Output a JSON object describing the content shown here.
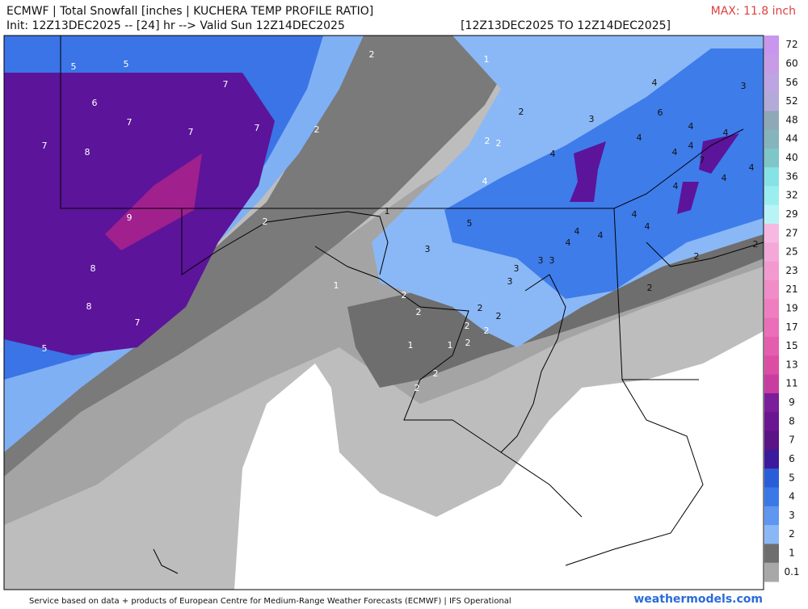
{
  "header": {
    "title": "ECMWF | Total Snowfall [inches | KUCHERA TEMP PROFILE RATIO]",
    "init": "Init: 12Z13DEC2025 -- [24] hr --> Valid Sun 12Z14DEC2025",
    "range": "[12Z13DEC2025 TO 12Z14DEC2025]",
    "max": "MAX: 11.8 inch"
  },
  "colorbar": {
    "ticks": [
      72,
      60,
      56,
      52,
      48,
      44,
      40,
      36,
      32,
      29,
      27,
      25,
      23,
      21,
      19,
      17,
      15,
      13,
      11,
      9,
      8,
      7,
      6,
      5,
      4,
      3,
      2,
      1,
      0.1
    ],
    "colors": [
      "#c896ec",
      "#c69ce6",
      "#bda4e2",
      "#b4aad8",
      "#8fa8b8",
      "#86b4bc",
      "#7ec6c8",
      "#86e2e4",
      "#9aeef0",
      "#b8f4f6",
      "#f6b8e0",
      "#f4a8d8",
      "#f29ad0",
      "#f08cc8",
      "#ee7ec0",
      "#ea6eb8",
      "#e45eae",
      "#dc4ea4",
      "#c83ea0",
      "#7a1e9a",
      "#6a1690",
      "#5a1486",
      "#3c1a9c",
      "#2a5ed8",
      "#3a78e8",
      "#5e96f0",
      "#8ab8f6",
      "#6e6e6e",
      "#a8a8a8"
    ]
  },
  "map_labels": [
    5,
    5,
    2,
    1,
    7,
    6,
    7,
    7,
    7,
    2,
    2,
    3,
    6,
    4,
    3,
    7,
    8,
    2,
    2,
    4,
    4,
    4,
    4,
    4,
    4,
    7,
    4,
    4,
    4,
    4,
    1,
    9,
    2,
    5,
    4,
    4,
    4,
    4,
    4,
    3,
    8,
    1,
    3,
    3,
    3,
    3,
    2,
    2,
    2,
    8,
    2,
    2,
    2,
    2,
    7,
    2,
    2,
    5,
    1,
    1,
    2,
    2,
    2
  ],
  "footer": {
    "credit": "Service based on data + products of European Centre for Medium-Range Weather Forecasts (ECMWF) | IFS Operational",
    "brand": "weathermodels.com"
  }
}
